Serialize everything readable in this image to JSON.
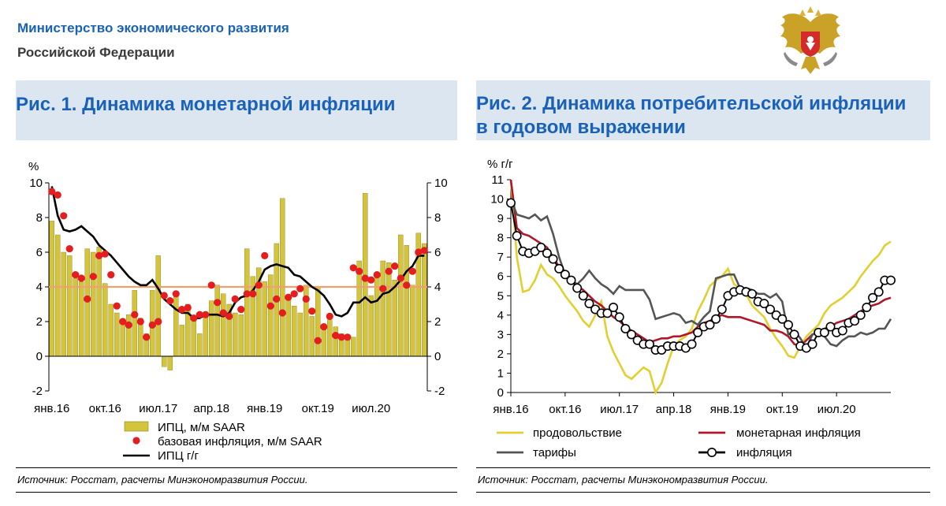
{
  "header": {
    "org_line1": "Министерство экономического развития",
    "org_line2": "Российской Федерации"
  },
  "fig1": {
    "title": "Рис. 1. Динамика монетарной инфляции",
    "source": "Источник: Росстат, расчеты Минэкономразвития России."
  },
  "fig2": {
    "title_line1": "Рис. 2. Динамика потребительской инфляции",
    "title_line2": "в годовом выражении",
    "source": "Источник: Росстат, расчеты Минэкономразвития России."
  },
  "chart_data": [
    {
      "type": "bar",
      "title": "Рис. 1. Динамика монетарной инфляции",
      "ylabel": "%",
      "ylim": [
        -2,
        10
      ],
      "yticks": [
        -2,
        0,
        2,
        4,
        6,
        8,
        10
      ],
      "x_tick_labels": [
        "янв.16",
        "окт.16",
        "июл.17",
        "апр.18",
        "янв.19",
        "окт.19",
        "июл.20"
      ],
      "x_tick_month_index": [
        0,
        9,
        18,
        27,
        36,
        45,
        54
      ],
      "reference_line": 4,
      "series": [
        {
          "name": "ИПЦ, м/м SAAR",
          "kind": "bar",
          "color": "#d4c43c",
          "values": [
            7.8,
            7.0,
            6.0,
            5.8,
            4.5,
            4.3,
            6.2,
            6.0,
            6.3,
            4.2,
            3.0,
            2.5,
            1.9,
            2.4,
            3.8,
            2.2,
            1.3,
            3.8,
            5.8,
            -0.6,
            -0.8,
            3.5,
            1.8,
            3.0,
            2.1,
            1.3,
            2.5,
            3.2,
            4.1,
            3.6,
            3.0,
            2.5,
            2.4,
            6.2,
            4.6,
            5.1,
            4.3,
            4.7,
            6.5,
            9.1,
            3.3,
            2.9,
            2.5,
            4.1,
            2.3,
            4.0,
            1.8,
            2.1,
            1.7,
            1.3,
            1.2,
            1.1,
            5.5,
            9.4,
            3.5,
            4.8,
            5.5,
            5.4,
            4.4,
            7.0,
            6.4,
            4.1,
            7.1,
            6.5
          ]
        },
        {
          "name": "базовая инфляция, м/м SAAR",
          "kind": "dot",
          "color": "#e41e1e",
          "values": [
            9.5,
            9.3,
            8.1,
            6.2,
            4.7,
            4.5,
            3.3,
            4.6,
            5.8,
            5.9,
            4.7,
            2.9,
            2.0,
            1.8,
            2.4,
            2.0,
            1.1,
            1.8,
            2.0,
            3.5,
            3.2,
            3.6,
            2.7,
            2.8,
            2.2,
            2.4,
            2.4,
            4.1,
            3.1,
            2.5,
            2.3,
            3.3,
            2.7,
            3.6,
            3.6,
            4.1,
            5.8,
            2.9,
            3.3,
            2.5,
            3.4,
            3.6,
            3.9,
            3.3,
            2.6,
            0.9,
            1.7,
            2.3,
            1.2,
            1.1,
            1.1,
            5.1,
            4.9,
            4.5,
            4.4,
            4.7,
            3.9,
            4.9,
            5.2,
            4.5,
            4.1,
            4.9,
            6.0,
            6.1
          ]
        },
        {
          "name": "ИПЦ г/г",
          "kind": "line",
          "color": "#000000",
          "values": [
            9.8,
            8.1,
            7.3,
            7.2,
            7.3,
            7.5,
            7.2,
            6.9,
            6.4,
            6.1,
            5.8,
            5.4,
            5.0,
            4.6,
            4.3,
            4.1,
            4.1,
            4.4,
            3.9,
            3.3,
            3.0,
            2.7,
            2.5,
            2.5,
            2.2,
            2.2,
            2.4,
            2.4,
            2.4,
            2.3,
            2.5,
            3.1,
            3.4,
            3.5,
            3.8,
            4.3,
            5.0,
            5.2,
            5.3,
            5.2,
            5.1,
            4.7,
            4.6,
            4.3,
            4.0,
            3.8,
            3.5,
            3.0,
            2.4,
            2.3,
            2.5,
            3.1,
            3.1,
            3.4,
            3.1,
            3.2,
            3.6,
            3.7,
            4.0,
            4.4,
            4.9,
            5.2,
            5.8,
            5.8
          ]
        }
      ]
    },
    {
      "type": "line",
      "title": "Рис. 2. Динамика потребительской инфляции в годовом выражении",
      "ylabel": "% г/г",
      "ylim": [
        0,
        11
      ],
      "yticks": [
        0,
        1,
        2,
        3,
        4,
        5,
        6,
        7,
        8,
        9,
        10,
        11
      ],
      "x_tick_labels": [
        "янв.16",
        "окт.16",
        "июл.17",
        "апр.18",
        "янв.19",
        "окт.19",
        "июл.20"
      ],
      "x_tick_month_index": [
        0,
        9,
        18,
        27,
        36,
        45,
        54
      ],
      "series": [
        {
          "name": "продовольствие",
          "color": "#e0d030",
          "values": [
            11.0,
            7.0,
            5.2,
            5.3,
            5.8,
            6.6,
            6.1,
            5.9,
            5.5,
            5.0,
            4.6,
            4.2,
            3.7,
            3.4,
            4.0,
            4.7,
            2.9,
            2.1,
            1.5,
            0.9,
            0.7,
            1.0,
            1.3,
            1.1,
            0.0,
            0.5,
            1.5,
            2.4,
            2.7,
            2.9,
            3.3,
            4.2,
            4.8,
            5.5,
            5.8,
            6.0,
            6.4,
            5.6,
            5.4,
            5.1,
            4.5,
            4.2,
            3.9,
            3.3,
            2.8,
            2.4,
            1.9,
            1.8,
            2.4,
            2.9,
            3.2,
            3.5,
            4.1,
            4.5,
            4.7,
            4.9,
            5.2,
            5.5,
            6.0,
            6.4,
            6.8,
            7.1,
            7.6,
            7.8
          ]
        },
        {
          "name": "монетарная инфляция",
          "color": "#b0182a",
          "values": [
            11.0,
            8.5,
            8.2,
            8.1,
            7.9,
            7.7,
            7.5,
            7.0,
            6.5,
            6.1,
            5.8,
            5.5,
            5.3,
            5.0,
            4.7,
            4.5,
            4.2,
            3.9,
            3.7,
            3.4,
            3.2,
            3.0,
            2.8,
            2.6,
            2.7,
            2.8,
            2.8,
            2.9,
            2.9,
            3.0,
            3.1,
            3.4,
            3.6,
            3.7,
            3.9,
            4.0,
            3.9,
            3.9,
            3.9,
            3.8,
            3.7,
            3.6,
            3.5,
            3.2,
            3.2,
            3.1,
            2.9,
            2.5,
            2.4,
            2.7,
            3.0,
            3.1,
            3.3,
            3.4,
            3.6,
            3.7,
            3.8,
            4.0,
            4.2,
            4.4,
            4.5,
            4.6,
            4.8,
            4.9
          ]
        },
        {
          "name": "тарифы",
          "color": "#555555",
          "values": [
            10.0,
            9.2,
            9.1,
            9.0,
            9.2,
            8.9,
            9.1,
            8.2,
            7.0,
            6.1,
            5.8,
            5.6,
            5.9,
            6.3,
            5.9,
            5.6,
            5.4,
            5.1,
            5.5,
            5.3,
            5.3,
            5.3,
            5.3,
            4.8,
            3.8,
            3.9,
            4.0,
            4.1,
            4.0,
            3.6,
            3.7,
            3.5,
            3.9,
            4.2,
            5.9,
            6.0,
            6.1,
            6.1,
            5.4,
            5.4,
            5.3,
            5.1,
            5.1,
            4.9,
            5.1,
            4.7,
            3.0,
            3.2,
            2.8,
            2.3,
            3.0,
            3.1,
            2.9,
            2.5,
            2.4,
            2.7,
            2.9,
            2.9,
            3.1,
            3.0,
            3.1,
            3.3,
            3.3,
            3.8
          ]
        },
        {
          "name": "инфляция",
          "color": "#000000",
          "marker": "hollow-circle",
          "values": [
            9.8,
            8.1,
            7.3,
            7.2,
            7.3,
            7.5,
            7.2,
            6.9,
            6.4,
            6.1,
            5.8,
            5.4,
            5.0,
            4.6,
            4.3,
            4.1,
            4.1,
            4.4,
            3.9,
            3.3,
            3.0,
            2.7,
            2.5,
            2.5,
            2.2,
            2.2,
            2.4,
            2.4,
            2.4,
            2.3,
            2.5,
            3.1,
            3.4,
            3.5,
            3.8,
            4.3,
            5.0,
            5.2,
            5.3,
            5.2,
            5.1,
            4.7,
            4.6,
            4.3,
            4.0,
            3.8,
            3.5,
            3.0,
            2.4,
            2.3,
            2.5,
            3.1,
            3.1,
            3.4,
            3.1,
            3.2,
            3.6,
            3.7,
            4.0,
            4.4,
            4.9,
            5.2,
            5.8,
            5.8
          ]
        }
      ]
    }
  ]
}
